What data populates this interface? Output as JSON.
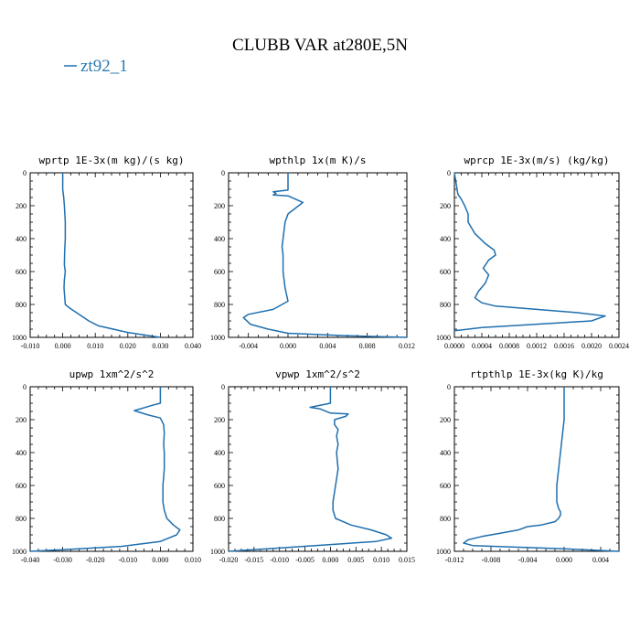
{
  "figure": {
    "title": "CLUBB VAR at280E,5N",
    "legend": [
      {
        "label": "zt92_1",
        "color": "#1f6fae"
      }
    ]
  },
  "chart_data": [
    {
      "type": "line",
      "title": "wprtp  1E-3x(m kg)/(s kg)",
      "xlim": [
        -0.01,
        0.04
      ],
      "xticks": [
        "-0.010",
        "0.000",
        "0.010",
        "0.020",
        "0.030",
        "0.040"
      ],
      "xtick_values": [
        -0.01,
        0,
        0.01,
        0.02,
        0.03,
        0.04
      ],
      "ylim": [
        0,
        1000
      ],
      "yticks": [
        "0",
        "200",
        "400",
        "600",
        "800",
        "1000"
      ],
      "y_inverted": true,
      "series": [
        {
          "name": "zt92_1",
          "x": [
            0.0,
            0.0,
            0.0003,
            0.0005,
            0.0008,
            0.0008,
            0.0006,
            0.0005,
            0.0008,
            0.0005,
            0.0004,
            0.0008,
            0.002,
            0.005,
            0.008,
            0.011,
            0.02,
            0.03
          ],
          "y": [
            0,
            100,
            150,
            200,
            300,
            400,
            480,
            560,
            600,
            650,
            700,
            800,
            820,
            860,
            900,
            930,
            970,
            1000
          ]
        }
      ]
    },
    {
      "type": "line",
      "title": "wpthlp  1x(m K)/s",
      "xlim": [
        -0.006,
        0.012
      ],
      "xticks": [
        "-0.004",
        "0.000",
        "0.004",
        "0.008",
        "0.012"
      ],
      "xtick_values": [
        -0.004,
        0,
        0.004,
        0.008,
        0.012
      ],
      "ylim": [
        0,
        1000
      ],
      "yticks": [
        "0",
        "200",
        "400",
        "600",
        "800",
        "1000"
      ],
      "y_inverted": true,
      "series": [
        {
          "name": "zt92_1",
          "x": [
            0.0,
            0.0,
            -0.0015,
            -0.0012,
            -0.0015,
            0.0,
            0.0015,
            0.0,
            -0.0003,
            -0.0005,
            -0.0006,
            -0.0005,
            -0.0005,
            -0.0003,
            0.0,
            -0.0015,
            -0.004,
            -0.0045,
            -0.0038,
            -0.002,
            0.0,
            0.006,
            0.012
          ],
          "y": [
            0,
            105,
            115,
            125,
            135,
            140,
            180,
            250,
            300,
            400,
            450,
            500,
            600,
            700,
            780,
            830,
            860,
            880,
            920,
            950,
            975,
            990,
            1000
          ]
        }
      ]
    },
    {
      "type": "line",
      "title": "wprcp  1E-3x(m/s) (kg/kg)",
      "xlim": [
        0.0,
        0.0024
      ],
      "xticks": [
        "0.0000",
        "0.0004",
        "0.0008",
        "0.0012",
        "0.0016",
        "0.0020",
        "0.0024"
      ],
      "xtick_values": [
        0,
        0.0004,
        0.0008,
        0.0012,
        0.0016,
        0.002,
        0.0024
      ],
      "ylim": [
        0,
        1000
      ],
      "yticks": [
        "0",
        "200",
        "400",
        "600",
        "800",
        "1000"
      ],
      "y_inverted": true,
      "series": [
        {
          "name": "zt92_1",
          "x": [
            0.0,
            5e-05,
            0.0001,
            0.00015,
            0.0002,
            0.0002,
            0.0003,
            0.00045,
            0.00058,
            0.0006,
            0.0005,
            0.00042,
            0.0005,
            0.00045,
            0.00035,
            0.0003,
            0.0004,
            0.0006,
            0.0012,
            0.0018,
            0.0022,
            0.002,
            0.0012,
            0.0004,
            0.0
          ],
          "y": [
            0,
            130,
            160,
            200,
            250,
            300,
            370,
            430,
            470,
            500,
            530,
            580,
            620,
            670,
            720,
            760,
            790,
            810,
            830,
            850,
            870,
            900,
            920,
            940,
            960
          ]
        }
      ]
    },
    {
      "type": "line",
      "title": "upwp  1xm^2/s^2",
      "xlim": [
        -0.04,
        0.01
      ],
      "xticks": [
        "-0.040",
        "-0.030",
        "-0.020",
        "-0.010",
        "0.000",
        "0.010"
      ],
      "xtick_values": [
        -0.04,
        -0.03,
        -0.02,
        -0.01,
        0,
        0.01
      ],
      "ylim": [
        0,
        1000
      ],
      "yticks": [
        "0",
        "200",
        "400",
        "600",
        "800",
        "1000"
      ],
      "y_inverted": true,
      "series": [
        {
          "name": "zt92_1",
          "x": [
            0.0,
            0.0,
            -0.002,
            -0.008,
            -0.004,
            0.0,
            0.001,
            0.0012,
            0.001,
            0.0012,
            0.0012,
            0.0008,
            0.0008,
            0.0012,
            0.002,
            0.004,
            0.006,
            0.005,
            0.0,
            -0.012,
            -0.03,
            -0.04
          ],
          "y": [
            0,
            100,
            110,
            145,
            170,
            190,
            230,
            280,
            350,
            400,
            500,
            600,
            700,
            750,
            800,
            840,
            870,
            900,
            940,
            970,
            990,
            1000
          ]
        }
      ]
    },
    {
      "type": "line",
      "title": "vpwp  1xm^2/s^2",
      "xlim": [
        -0.02,
        0.015
      ],
      "xticks": [
        "-0.020",
        "-0.015",
        "-0.010",
        "-0.005",
        "0.000",
        "0.005",
        "0.010",
        "0.015"
      ],
      "xtick_values": [
        -0.02,
        -0.015,
        -0.01,
        -0.005,
        0,
        0.005,
        0.01,
        0.015
      ],
      "ylim": [
        0,
        1000
      ],
      "yticks": [
        "0",
        "200",
        "400",
        "600",
        "800",
        "1000"
      ],
      "y_inverted": true,
      "series": [
        {
          "name": "zt92_1",
          "x": [
            0.0,
            0.0,
            -0.004,
            -0.002,
            0.0,
            0.0035,
            0.003,
            0.0008,
            0.0008,
            0.0015,
            0.0012,
            0.0015,
            0.0012,
            0.0015,
            0.001,
            0.0005,
            0.0005,
            0.001,
            0.004,
            0.008,
            0.011,
            0.012,
            0.009,
            -0.01,
            -0.02
          ],
          "y": [
            0,
            100,
            125,
            135,
            160,
            165,
            180,
            200,
            230,
            260,
            300,
            350,
            400,
            500,
            600,
            700,
            750,
            800,
            840,
            870,
            900,
            920,
            940,
            980,
            1000
          ]
        }
      ]
    },
    {
      "type": "line",
      "title": "rtpthlp  1E-3x(kg K)/kg",
      "xlim": [
        -0.012,
        0.006
      ],
      "xticks": [
        "-0.012",
        "-0.008",
        "-0.004",
        "0.000",
        "0.004"
      ],
      "xtick_values": [
        -0.012,
        -0.008,
        -0.004,
        0,
        0.004
      ],
      "ylim": [
        0,
        1000
      ],
      "yticks": [
        "0",
        "200",
        "400",
        "600",
        "800",
        "1000"
      ],
      "y_inverted": true,
      "series": [
        {
          "name": "zt92_1",
          "x": [
            0.0,
            0.0,
            0.0,
            -0.0002,
            -0.0004,
            -0.0006,
            -0.0008,
            -0.0008,
            -0.0006,
            -0.0004,
            -0.0004,
            -0.0006,
            -0.001,
            -0.0025,
            -0.004,
            -0.005,
            -0.007,
            -0.009,
            -0.0105,
            -0.011,
            -0.01,
            0.0,
            0.006
          ],
          "y": [
            0,
            100,
            200,
            300,
            400,
            500,
            600,
            700,
            740,
            760,
            780,
            800,
            820,
            840,
            850,
            870,
            890,
            910,
            930,
            950,
            965,
            985,
            1000
          ]
        }
      ]
    }
  ]
}
